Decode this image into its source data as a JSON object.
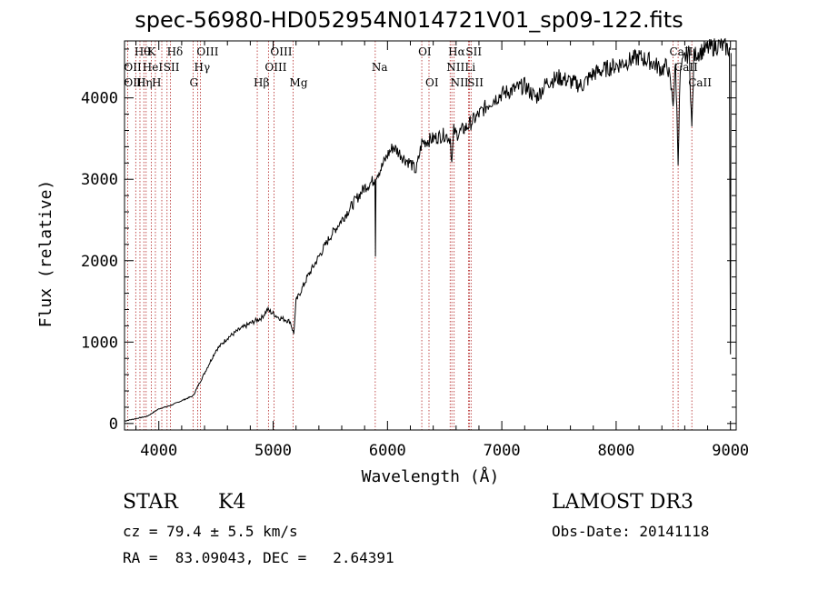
{
  "chart_data": {
    "type": "line",
    "title": "spec-56980-HD052954N014721V01_sp09-122.fits",
    "xlabel": "Wavelength (Å)",
    "ylabel": "Flux (relative)",
    "xlim": [
      3700,
      9050
    ],
    "ylim": [
      -80,
      4700
    ],
    "xticks": [
      4000,
      5000,
      6000,
      7000,
      8000,
      9000
    ],
    "yticks": [
      0,
      1000,
      2000,
      3000,
      4000
    ],
    "series": [
      {
        "name": "spectrum",
        "x": [
          3700,
          3800,
          3900,
          4000,
          4100,
          4200,
          4300,
          4400,
          4500,
          4600,
          4700,
          4800,
          4900,
          4950,
          5000,
          5050,
          5100,
          5150,
          5180,
          5200,
          5300,
          5400,
          5500,
          5600,
          5700,
          5800,
          5890,
          5895,
          5900,
          5950,
          6000,
          6050,
          6100,
          6150,
          6200,
          6250,
          6300,
          6400,
          6500,
          6550,
          6563,
          6580,
          6600,
          6700,
          6800,
          6900,
          7000,
          7100,
          7200,
          7300,
          7400,
          7500,
          7600,
          7700,
          7800,
          7900,
          8000,
          8100,
          8200,
          8300,
          8400,
          8450,
          8498,
          8520,
          8542,
          8560,
          8600,
          8640,
          8662,
          8680,
          8700,
          8800,
          8900,
          8990,
          9000,
          9005
        ],
        "y": [
          30,
          60,
          90,
          180,
          220,
          280,
          340,
          620,
          900,
          1050,
          1150,
          1230,
          1300,
          1400,
          1350,
          1300,
          1280,
          1250,
          1100,
          1500,
          1800,
          2050,
          2300,
          2500,
          2700,
          2900,
          3000,
          2050,
          3050,
          3150,
          3300,
          3400,
          3330,
          3250,
          3200,
          3100,
          3450,
          3500,
          3550,
          3500,
          3200,
          3600,
          3550,
          3650,
          3800,
          3950,
          4050,
          4100,
          4150,
          4000,
          4200,
          4250,
          4200,
          4150,
          4300,
          4350,
          4400,
          4450,
          4500,
          4450,
          4350,
          4400,
          3950,
          4400,
          3250,
          4300,
          4500,
          4550,
          3600,
          4500,
          4550,
          4600,
          4650,
          4600,
          850,
          4550
        ]
      }
    ],
    "lines": {
      "top_row": [
        "Hθ",
        "K",
        "Hδ",
        "OIII",
        "OIII",
        "OI",
        "Hα",
        "SII",
        "CaII"
      ],
      "mid_row": [
        "OII",
        "HeI",
        "SII",
        "Hγ",
        "OIII",
        "Na",
        "NII",
        "Li",
        "CaII"
      ],
      "low_row": [
        "OIII",
        "Hη",
        "H",
        "G",
        "Hβ",
        "Mg",
        "OI",
        "NII",
        "SII",
        "CaII"
      ]
    }
  },
  "info": {
    "class": "STAR",
    "subclass": "K4",
    "survey": "LAMOST DR3",
    "redshift": "cz = 79.4 ± 5.5 km/s",
    "obs_date": "Obs-Date: 20141118",
    "coords": "RA =  83.09043, DEC =   2.64391"
  },
  "colors": {
    "spectrum": "#000000",
    "marker": "#b22222",
    "axis": "#000000"
  }
}
